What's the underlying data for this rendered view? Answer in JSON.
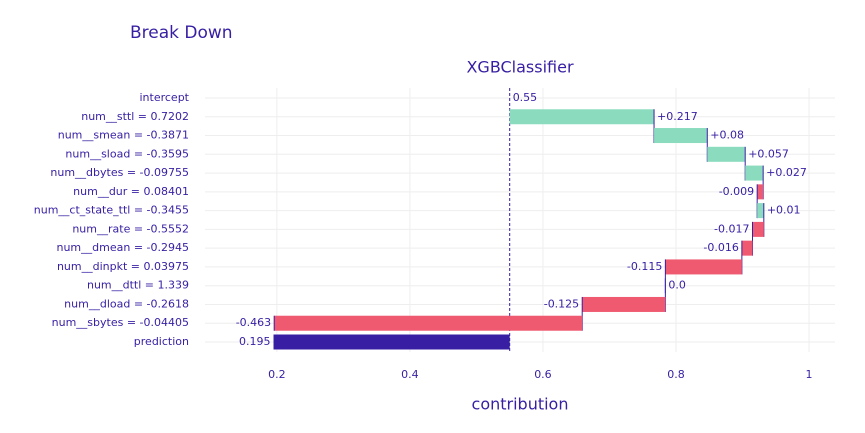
{
  "chart_data": {
    "type": "waterfall",
    "title": "Break Down",
    "subtitle": "XGBClassifier",
    "x_label": "contribution",
    "categories": [
      "intercept",
      "num__sttl = 0.7202",
      "num__smean = -0.3871",
      "num__sload = -0.3595",
      "num__dbytes = -0.09755",
      "num__dur = 0.08401",
      "num__ct_state_ttl = -0.3455",
      "num__rate = -0.5552",
      "num__dmean = -0.2945",
      "num__dinpkt = 0.03975",
      "num__dttl = 1.339",
      "num__dload = -0.2618",
      "num__sbytes = -0.04405",
      "prediction"
    ],
    "values": [
      0.55,
      0.217,
      0.08,
      0.057,
      0.027,
      -0.009,
      0.01,
      -0.017,
      -0.016,
      -0.115,
      0,
      -0.125,
      -0.463,
      0.195
    ],
    "value_labels": [
      "0.55",
      "+0.217",
      "+0.08",
      "+0.057",
      "+0.027",
      "-0.009",
      "+0.01",
      "-0.017",
      "-0.016",
      "-0.115",
      "0.0",
      "-0.125",
      "-0.463",
      "0.195"
    ],
    "positive_color": "#8bdcbe",
    "negative_color": "#f05a71",
    "prediction_color": "#371ea3",
    "xlim": [
      0.092,
      1.039
    ],
    "xticks": [
      0.2,
      0.4,
      0.6,
      0.8,
      1
    ],
    "grid": true
  }
}
